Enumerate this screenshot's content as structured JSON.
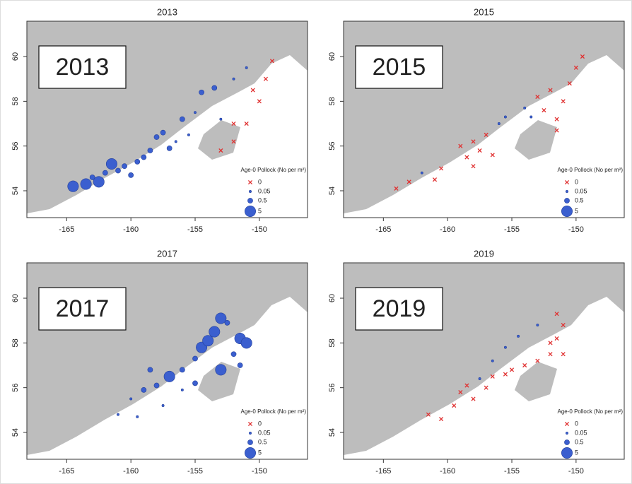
{
  "panels": [
    {
      "title": "2013",
      "label": "2013",
      "xlim": [
        -168.1,
        -146.25
      ],
      "ylim": [
        52.8,
        61.58
      ],
      "xticks": [
        -165,
        -160,
        -155,
        -150
      ],
      "yticks": [
        54,
        56,
        58,
        60
      ],
      "legend": {
        "title": "Age-0 Pollock (No per m²)",
        "values": [
          0,
          0.05,
          0.5,
          5
        ]
      },
      "points": {
        "lon": [
          -164.5,
          -163.5,
          -163,
          -162.5,
          -162,
          -161.5,
          -161,
          -160.5,
          -160,
          -159.5,
          -159,
          -158.5,
          -158,
          -157.5,
          -157,
          -156,
          -156.5,
          -155.5,
          -155,
          -154.5,
          -153.5,
          -153,
          -152,
          -151,
          -153,
          -152,
          -151,
          -150,
          -149.5,
          -149,
          -150.5,
          -152
        ],
        "lat": [
          54.2,
          54.3,
          54.6,
          54.4,
          54.8,
          55.2,
          54.9,
          55.1,
          54.7,
          55.3,
          55.5,
          55.8,
          56.4,
          56.6,
          55.9,
          57.2,
          56.2,
          56.5,
          57.5,
          58.4,
          58.6,
          57.2,
          59.0,
          59.5,
          55.8,
          56.2,
          57.0,
          58.0,
          59.0,
          59.8,
          58.5,
          57.0
        ],
        "density": [
          5,
          5,
          0.5,
          5,
          0.5,
          5,
          0.5,
          0.5,
          0.5,
          0.5,
          0.5,
          0.5,
          0.5,
          0.5,
          0.5,
          0.5,
          0.05,
          0.05,
          0.05,
          0.5,
          0.5,
          0.05,
          0.05,
          0.05,
          0,
          0,
          0,
          0,
          0,
          0,
          0,
          0
        ]
      }
    },
    {
      "title": "2015",
      "label": "2015",
      "xlim": [
        -168.1,
        -146.25
      ],
      "ylim": [
        52.8,
        61.58
      ],
      "xticks": [
        -165,
        -160,
        -155,
        -150
      ],
      "yticks": [
        54,
        56,
        58,
        60
      ],
      "legend": {
        "title": "Age-0 Pollock (No per m²)",
        "values": [
          0,
          0.05,
          0.5,
          5
        ]
      },
      "points": {
        "lon": [
          -164,
          -163,
          -161,
          -160.5,
          -159,
          -158.5,
          -158,
          -157.5,
          -157,
          -156.5,
          -158,
          -155.5,
          -156,
          -154,
          -153,
          -152.5,
          -152,
          -151.5,
          -151,
          -150.5,
          -150,
          -149.5,
          -151.5,
          -153.5,
          -162
        ],
        "lat": [
          54.1,
          54.4,
          54.5,
          55.0,
          56.0,
          55.5,
          56.2,
          55.8,
          56.5,
          55.6,
          55.1,
          57.3,
          57.0,
          57.7,
          58.2,
          57.6,
          58.5,
          57.2,
          58.0,
          58.8,
          59.5,
          60.0,
          56.7,
          57.3,
          54.8
        ],
        "density": [
          0,
          0,
          0,
          0,
          0,
          0,
          0,
          0,
          0,
          0,
          0,
          0.05,
          0.05,
          0.05,
          0,
          0,
          0,
          0,
          0,
          0,
          0,
          0,
          0,
          0.05,
          0.05
        ]
      }
    },
    {
      "title": "2017",
      "label": "2017",
      "xlim": [
        -168.1,
        -146.25
      ],
      "ylim": [
        52.8,
        61.58
      ],
      "xticks": [
        -165,
        -160,
        -155,
        -150
      ],
      "yticks": [
        54,
        56,
        58,
        60
      ],
      "legend": {
        "title": "Age-0 Pollock (No per m²)",
        "values": [
          0,
          0.05,
          0.5,
          5
        ]
      },
      "points": {
        "lon": [
          -161,
          -160,
          -159,
          -158,
          -157,
          -156,
          -155,
          -154.5,
          -154,
          -153.5,
          -153,
          -152.5,
          -153,
          -151.5,
          -151,
          -152,
          -151.5,
          -156,
          -157.5,
          -159.5,
          -155,
          -158.5
        ],
        "lat": [
          54.8,
          55.5,
          55.9,
          56.1,
          56.5,
          56.8,
          57.3,
          57.8,
          58.1,
          58.5,
          59.1,
          58.9,
          56.8,
          58.2,
          58.0,
          57.5,
          57.0,
          55.9,
          55.2,
          54.7,
          56.2,
          56.8
        ],
        "density": [
          0.05,
          0.05,
          0.5,
          0.5,
          5,
          0.5,
          0.5,
          5,
          5,
          5,
          5,
          0.5,
          5,
          5,
          5,
          0.5,
          0.5,
          0.05,
          0.05,
          0.05,
          0.5,
          0.5
        ]
      }
    },
    {
      "title": "2019",
      "label": "2019",
      "xlim": [
        -168.1,
        -146.25
      ],
      "ylim": [
        52.8,
        61.58
      ],
      "xticks": [
        -165,
        -160,
        -155,
        -150
      ],
      "yticks": [
        54,
        56,
        58,
        60
      ],
      "legend": {
        "title": "Age-0 Pollock (No per m²)",
        "values": [
          0,
          0.05,
          0.5,
          5
        ]
      },
      "points": {
        "lon": [
          -161.5,
          -160.5,
          -159.5,
          -159,
          -158.5,
          -158,
          -157,
          -156.5,
          -155.5,
          -155,
          -154,
          -153,
          -152,
          -151.5,
          -151,
          -151.5,
          -152,
          -151,
          -156.5,
          -155.5,
          -154.5,
          -157.5,
          -153
        ],
        "lat": [
          54.8,
          54.6,
          55.2,
          55.8,
          56.1,
          55.5,
          56.0,
          56.5,
          56.6,
          56.8,
          57.0,
          57.2,
          57.5,
          58.2,
          58.8,
          59.3,
          58.0,
          57.5,
          57.2,
          57.8,
          58.3,
          56.4,
          58.8
        ],
        "density": [
          0,
          0,
          0,
          0,
          0,
          0,
          0,
          0,
          0,
          0,
          0,
          0,
          0,
          0,
          0,
          0,
          0,
          0,
          0.05,
          0.05,
          0.05,
          0.05,
          0.05
        ]
      }
    }
  ]
}
